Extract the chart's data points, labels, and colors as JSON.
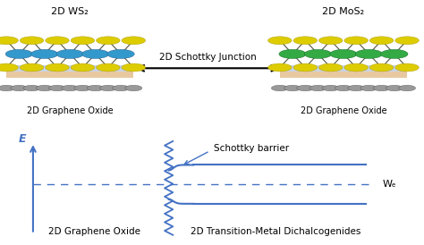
{
  "bg_color": "#ffffff",
  "junction_text": "2D Schottky Junction",
  "ws2_label": "2D WS₂",
  "mos2_label": "2D MoS₂",
  "go_label_left": "2D Graphene Oxide",
  "go_label_right": "2D Graphene Oxide",
  "e_label": "E",
  "schottky_barrier_label": "Schottky barrier",
  "wf_label": "Wₑ",
  "go_bottom_label": "2D Graphene Oxide",
  "tmd_bottom_label": "2D Transition-Metal Dichalcogenides",
  "blue_color": "#4472C4",
  "yellow_color": "#DDCC00",
  "blue_mid_color": "#3399CC",
  "green_mid_color": "#33AA44",
  "grey_atom_color": "#999999",
  "grey_bond_color": "#777777",
  "substrate_color": "#E8D8C8",
  "substrate_top_color": "#D0D8E8"
}
